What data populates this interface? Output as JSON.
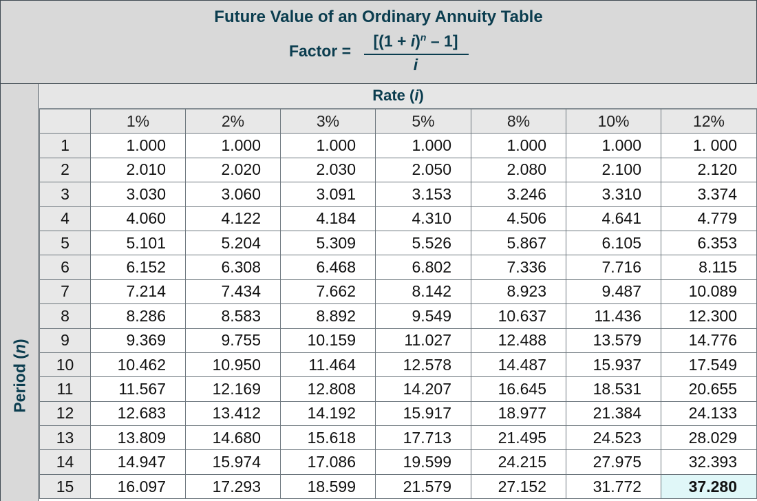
{
  "header": {
    "title": "Future Value of an Ordinary Annuity Table",
    "factor_label": "Factor =",
    "numerator_pre": "[(1 + ",
    "numerator_i": "i",
    "numerator_mid": ")",
    "numerator_exp": "n",
    "numerator_post": " – 1]",
    "denominator": "i"
  },
  "period_label": {
    "text": "Period (",
    "var": "n",
    "close": ")"
  },
  "rate_label": {
    "text": "Rate (",
    "var": "i",
    "close": ")"
  },
  "rates": [
    "1%",
    "2%",
    "3%",
    "5%",
    "8%",
    "10%",
    "12%"
  ],
  "rows": [
    {
      "period": "1",
      "values": [
        "1.000",
        "1.000",
        "1.000",
        "1.000",
        "1.000",
        "1.000",
        "1. 000"
      ]
    },
    {
      "period": "2",
      "values": [
        "2.010",
        "2.020",
        "2.030",
        "2.050",
        "2.080",
        "2.100",
        "2.120"
      ]
    },
    {
      "period": "3",
      "values": [
        "3.030",
        "3.060",
        "3.091",
        "3.153",
        "3.246",
        "3.310",
        "3.374"
      ]
    },
    {
      "period": "4",
      "values": [
        "4.060",
        "4.122",
        "4.184",
        "4.310",
        "4.506",
        "4.641",
        "4.779"
      ]
    },
    {
      "period": "5",
      "values": [
        "5.101",
        "5.204",
        "5.309",
        "5.526",
        "5.867",
        "6.105",
        "6.353"
      ]
    },
    {
      "period": "6",
      "values": [
        "6.152",
        "6.308",
        "6.468",
        "6.802",
        "7.336",
        "7.716",
        "8.115"
      ]
    },
    {
      "period": "7",
      "values": [
        "7.214",
        "7.434",
        "7.662",
        "8.142",
        "8.923",
        "9.487",
        "10.089"
      ]
    },
    {
      "period": "8",
      "values": [
        "8.286",
        "8.583",
        "8.892",
        "9.549",
        "10.637",
        "11.436",
        "12.300"
      ]
    },
    {
      "period": "9",
      "values": [
        "9.369",
        "9.755",
        "10.159",
        "11.027",
        "12.488",
        "13.579",
        "14.776"
      ]
    },
    {
      "period": "10",
      "values": [
        "10.462",
        "10.950",
        "11.464",
        "12.578",
        "14.487",
        "15.937",
        "17.549"
      ]
    },
    {
      "period": "11",
      "values": [
        "11.567",
        "12.169",
        "12.808",
        "14.207",
        "16.645",
        "18.531",
        "20.655"
      ]
    },
    {
      "period": "12",
      "values": [
        "12.683",
        "13.412",
        "14.192",
        "15.917",
        "18.977",
        "21.384",
        "24.133"
      ]
    },
    {
      "period": "13",
      "values": [
        "13.809",
        "14.680",
        "15.618",
        "17.713",
        "21.495",
        "24.523",
        "28.029"
      ]
    },
    {
      "period": "14",
      "values": [
        "14.947",
        "15.974",
        "17.086",
        "19.599",
        "24.215",
        "27.975",
        "32.393"
      ]
    },
    {
      "period": "15",
      "values": [
        "16.097",
        "17.293",
        "18.599",
        "21.579",
        "27.152",
        "31.772",
        "37.280"
      ]
    }
  ],
  "highlight": {
    "row": 15,
    "rate": "12%",
    "color": "#e0f7f8"
  },
  "colors": {
    "title": "#0b3d4f",
    "header_bg": "#d9d9d9",
    "border": "#3f4a52"
  }
}
